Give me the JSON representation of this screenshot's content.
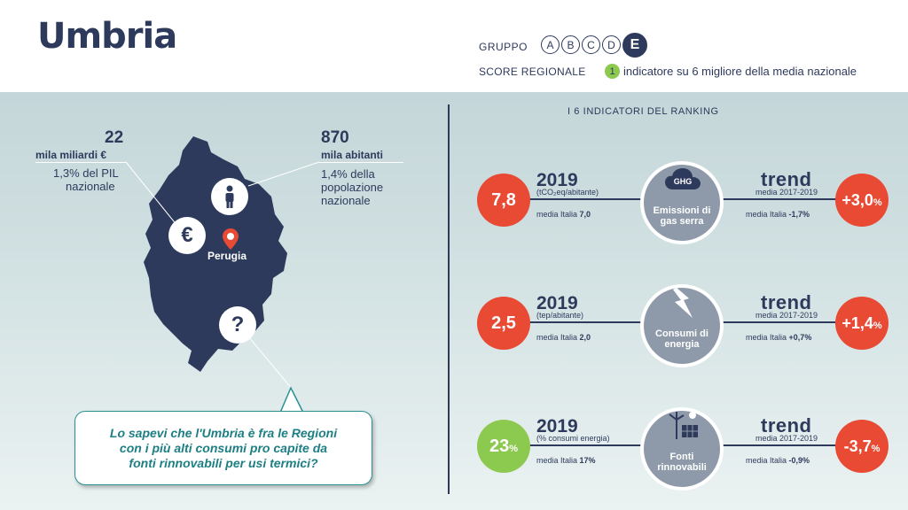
{
  "header": {
    "title": "Umbria",
    "gruppo_label": "GRUPPO",
    "gruppo_options": [
      "A",
      "B",
      "C",
      "D",
      "E"
    ],
    "gruppo_selected": "E",
    "score_label": "SCORE REGIONALE",
    "score_count": "1",
    "score_text": "indicatore su 6 migliore della media nazionale"
  },
  "left": {
    "pil": {
      "value": "22",
      "unit": "mila miliardi €",
      "desc_line1": "1,3% del PIL",
      "desc_line2": "nazionale"
    },
    "pop": {
      "value": "870",
      "unit": "mila abitanti",
      "desc_line1": "1,4% della",
      "desc_line2": "popolazione",
      "desc_line3": "nazionale"
    },
    "city": "Perugia",
    "euro_symbol": "€",
    "question_symbol": "?",
    "callout_line1": "Lo sapevi che l'Umbria è fra le Regioni",
    "callout_line2": "con i più alti consumi pro capite da",
    "callout_line3": "fonti rinnovabili per usi termici?"
  },
  "ranking": {
    "title": "I 6 INDICATORI DEL RANKING",
    "rows": [
      {
        "value": "7,8",
        "value_suffix": "",
        "year": "2019",
        "unit": "(tCO₂eq/abitante)",
        "media_label": "media Italia",
        "media_value": "7,0",
        "badge": "GHG",
        "label_line1": "Emissioni di",
        "label_line2": "gas serra",
        "trend_label": "trend",
        "trend_period": "media 2017-2019",
        "trend_media_label": "media Italia",
        "trend_media_value": "-1,7%",
        "trend_value": "+3,0",
        "trend_suffix": "%",
        "value_color": "#e84a34",
        "trend_color": "#e84a34"
      },
      {
        "value": "2,5",
        "value_suffix": "",
        "year": "2019",
        "unit": "(tep/abitante)",
        "media_label": "media Italia",
        "media_value": "2,0",
        "badge": "",
        "label_line1": "Consumi di",
        "label_line2": "energia",
        "trend_label": "trend",
        "trend_period": "media 2017-2019",
        "trend_media_label": "media Italia",
        "trend_media_value": "+0,7%",
        "trend_value": "+1,4",
        "trend_suffix": "%",
        "value_color": "#e84a34",
        "trend_color": "#e84a34"
      },
      {
        "value": "23",
        "value_suffix": "%",
        "year": "2019",
        "unit": "(% consumi energia)",
        "media_label": "media Italia",
        "media_value": "17%",
        "badge": "",
        "label_line1": "Fonti",
        "label_line2": "rinnovabili",
        "trend_label": "trend",
        "trend_period": "media 2017-2019",
        "trend_media_label": "media Italia",
        "trend_media_value": "-0,9%",
        "trend_value": "-3,7",
        "trend_suffix": "%",
        "value_color": "#8cc94f",
        "trend_color": "#e84a34"
      }
    ]
  }
}
